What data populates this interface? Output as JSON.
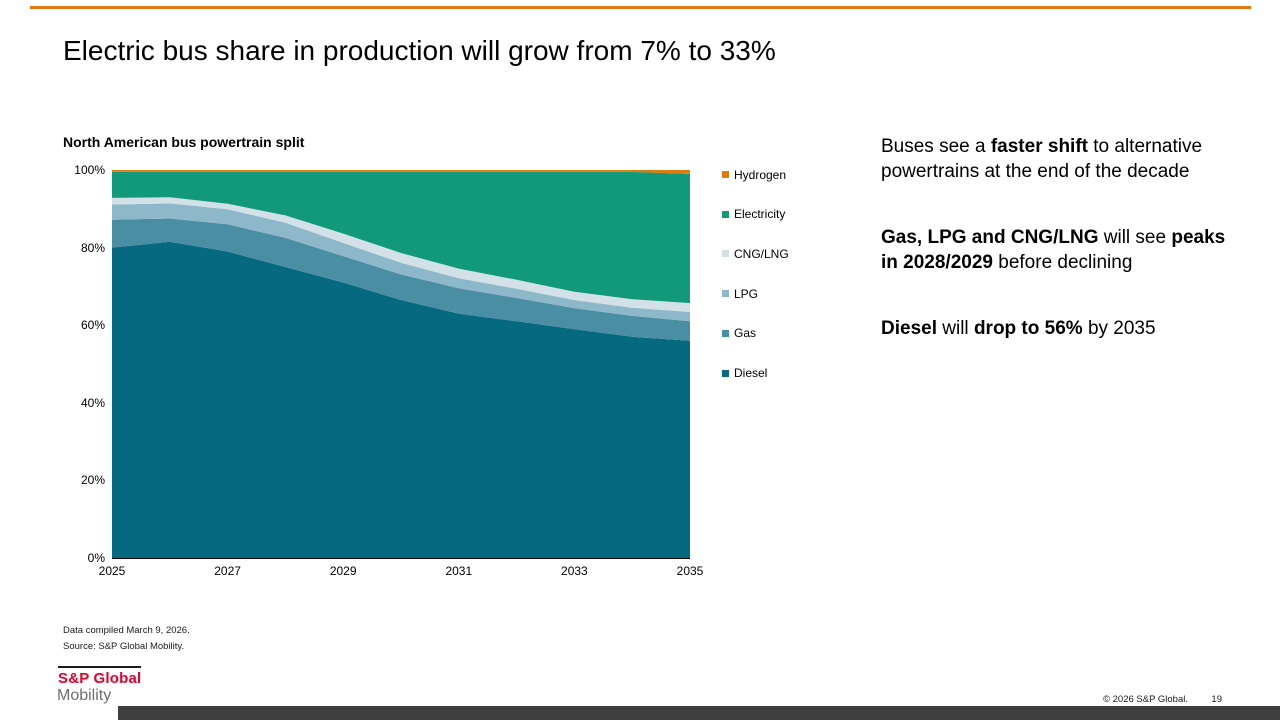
{
  "slide": {
    "title": "Electric bus share in production will grow from 7% to 33%",
    "copyright": "© 2026 S&P Global.",
    "page_number": "19",
    "footnotes": [
      "Data compiled March 9, 2026.",
      "Source: S&P Global Mobility."
    ],
    "logo": {
      "brand": "S&P Global",
      "division": "Mobility"
    },
    "accent_colors": {
      "top_bar": "#e0790f",
      "bottom_bar": "#3f3f3f",
      "brand_red": "#e4002b"
    }
  },
  "insights": [
    {
      "segments": [
        {
          "t": "Buses see a ",
          "b": false
        },
        {
          "t": "faster shift",
          "b": true
        },
        {
          "t": " to alternative powertrains at the end of the decade",
          "b": false
        }
      ]
    },
    {
      "segments": [
        {
          "t": "Gas, LPG and CNG/LNG",
          "b": true
        },
        {
          "t": " will see ",
          "b": false
        },
        {
          "t": "peaks in 2028/2029",
          "b": true
        },
        {
          "t": " before declining",
          "b": false
        }
      ]
    },
    {
      "segments": [
        {
          "t": "Diesel",
          "b": true
        },
        {
          "t": " will ",
          "b": false
        },
        {
          "t": "drop to 56%",
          "b": true
        },
        {
          "t": " by 2035",
          "b": false
        }
      ]
    }
  ],
  "chart_data": {
    "type": "area",
    "stacked": true,
    "title": "North American bus powertrain split",
    "x": [
      2025,
      2026,
      2027,
      2028,
      2029,
      2030,
      2031,
      2032,
      2033,
      2034,
      2035
    ],
    "x_tick_labels": [
      "2025",
      "2027",
      "2029",
      "2031",
      "2033",
      "2035"
    ],
    "y_tick_labels": [
      "100%",
      "80%",
      "60%",
      "40%",
      "20%",
      "0%"
    ],
    "ylim": [
      0,
      100
    ],
    "unit": "%",
    "grid": false,
    "legend_position": "right",
    "legend_order": [
      "Hydrogen",
      "Electricity",
      "CNG/LNG",
      "LPG",
      "Gas",
      "Diesel"
    ],
    "series": [
      {
        "name": "Diesel",
        "color": "#07697f",
        "values": [
          80,
          81.5,
          79,
          75,
          71,
          66.5,
          63,
          61,
          59,
          57,
          56
        ]
      },
      {
        "name": "Gas",
        "color": "#4a8ea4",
        "values": [
          7.2,
          6.0,
          7.0,
          7.5,
          6.8,
          6.6,
          6.5,
          6.0,
          5.4,
          5.4,
          5.0
        ]
      },
      {
        "name": "LPG",
        "color": "#8db8c9",
        "values": [
          3.9,
          3.9,
          3.9,
          3.9,
          3.4,
          3.0,
          2.6,
          2.4,
          2.1,
          2.1,
          2.4
        ]
      },
      {
        "name": "CNG/LNG",
        "color": "#d2e1e7",
        "values": [
          1.7,
          1.6,
          1.4,
          1.9,
          2.4,
          2.5,
          2.5,
          2.3,
          2.1,
          2.2,
          2.3
        ]
      },
      {
        "name": "Electricity",
        "color": "#12997a",
        "values": [
          6.7,
          6.5,
          8.2,
          11.2,
          15.9,
          20.9,
          24.9,
          27.8,
          30.9,
          32.8,
          33.3
        ]
      },
      {
        "name": "Hydrogen",
        "color": "#de7d0f",
        "values": [
          0.5,
          0.5,
          0.5,
          0.5,
          0.5,
          0.5,
          0.5,
          0.5,
          0.5,
          0.5,
          1.0
        ]
      }
    ]
  }
}
